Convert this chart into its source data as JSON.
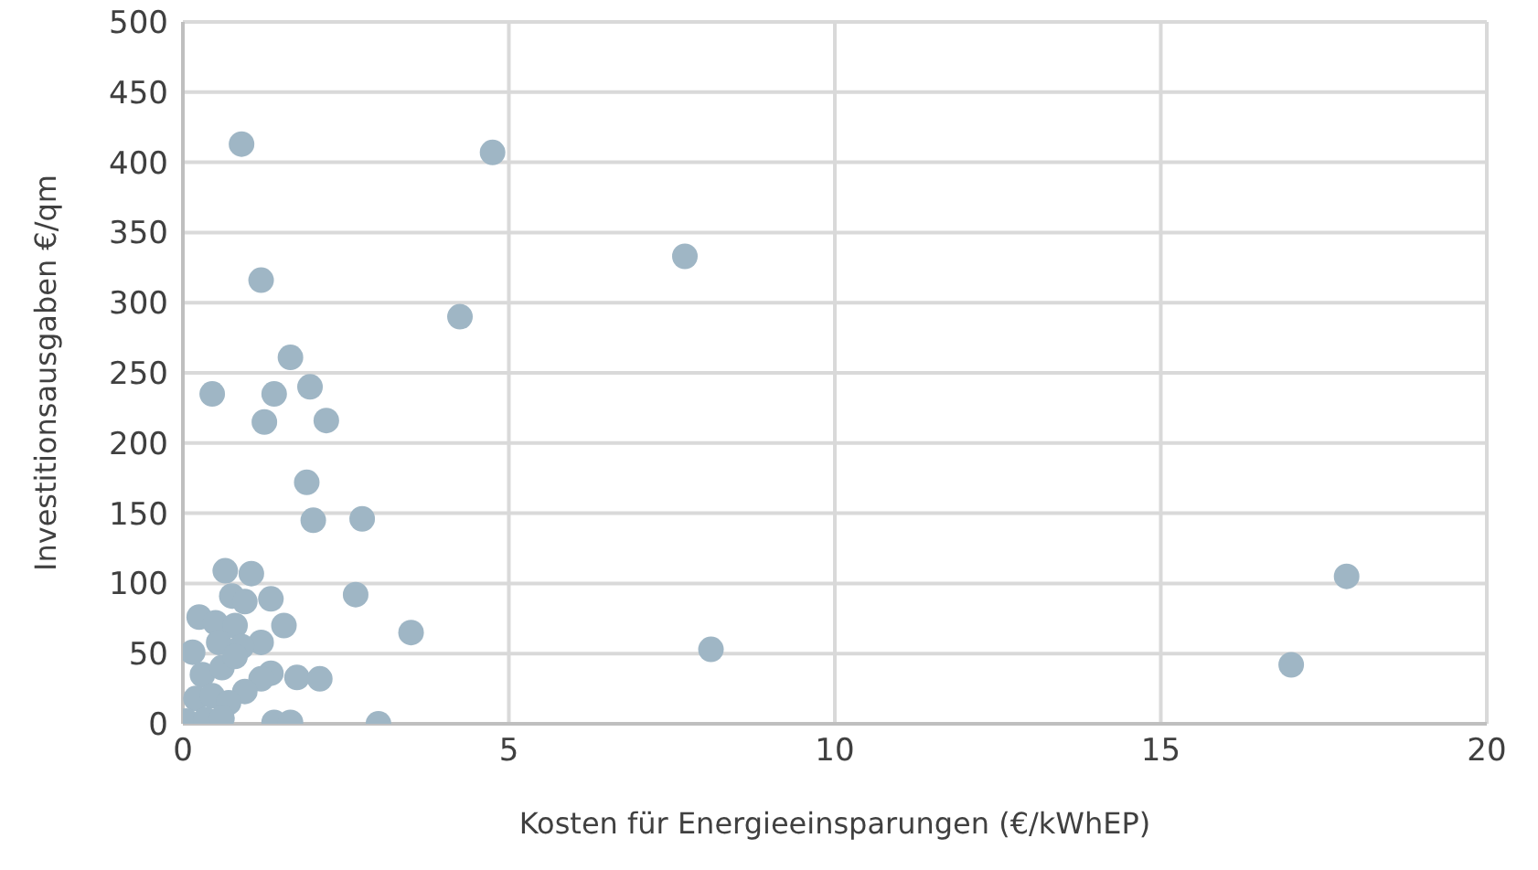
{
  "chart_data": {
    "type": "scatter",
    "xlabel": "Kosten für Energieeinsparungen (€/kWhEP)",
    "ylabel": "Investitionsausgaben €/qm",
    "x": [
      0.9,
      4.75,
      7.7,
      4.25,
      1.2,
      0.45,
      1.65,
      1.95,
      1.4,
      1.25,
      2.2,
      1.9,
      2.0,
      2.75,
      0.65,
      1.05,
      2.65,
      1.35,
      0.75,
      0.95,
      0.25,
      0.5,
      0.8,
      1.55,
      3.5,
      1.2,
      0.55,
      0.15,
      0.9,
      8.1,
      17.85,
      17.0,
      0.3,
      0.6,
      1.35,
      1.2,
      1.75,
      2.1,
      0.95,
      0.2,
      0.45,
      0.7,
      0.05,
      0.35,
      0.6,
      1.4,
      1.65,
      3.0,
      0.8
    ],
    "values": [
      413,
      407,
      333,
      290,
      316,
      235,
      261,
      240,
      235,
      215,
      216,
      172,
      145,
      146,
      109,
      107,
      92,
      89,
      91,
      87,
      76,
      72,
      70,
      70,
      65,
      58,
      58,
      51,
      55,
      53,
      105,
      42,
      35,
      40,
      36,
      32,
      33,
      32,
      23,
      18,
      20,
      15,
      2,
      3,
      4,
      1,
      1,
      0,
      48
    ],
    "color": "#9fb6c5",
    "marker": "circle",
    "xlim": [
      0,
      20
    ],
    "xticks": [
      0,
      5,
      10,
      15,
      20
    ],
    "ylim": [
      0,
      500
    ],
    "yticks": [
      0,
      50,
      100,
      150,
      200,
      250,
      300,
      350,
      400,
      450,
      500
    ],
    "grid": true
  }
}
